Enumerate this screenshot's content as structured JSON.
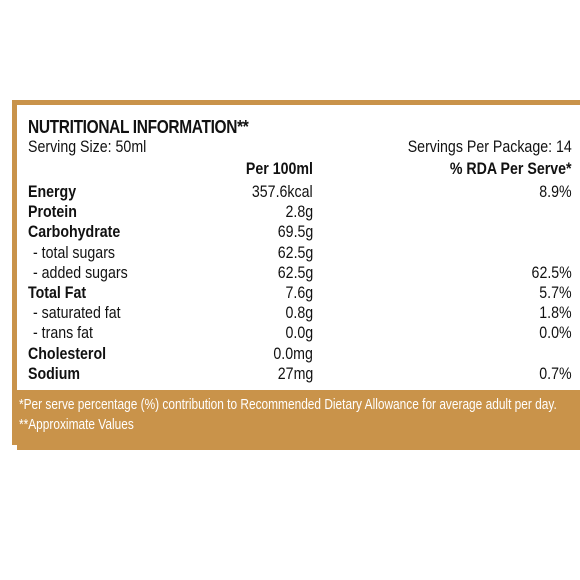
{
  "label": {
    "title": "NUTRITIONAL INFORMATION**",
    "serving_size": "Serving Size: 50ml",
    "servings_per_package": "Servings Per Package: 14",
    "col_per_100ml": "Per 100ml",
    "col_rda": "% RDA Per Serve*",
    "rows": [
      {
        "name": "Energy",
        "per100": "357.6kcal",
        "rda": "8.9%",
        "style": "bold"
      },
      {
        "name": "Protein",
        "per100": "2.8g",
        "rda": "",
        "style": "bold"
      },
      {
        "name": "Carbohydrate",
        "per100": "69.5g",
        "rda": "",
        "style": "bold"
      },
      {
        "name": "- total sugars",
        "per100": "62.5g",
        "rda": "",
        "style": "sub"
      },
      {
        "name": "- added sugars",
        "per100": "62.5g",
        "rda": "62.5%",
        "style": "sub"
      },
      {
        "name": "Total Fat",
        "per100": "7.6g",
        "rda": "5.7%",
        "style": "bold"
      },
      {
        "name": "- saturated fat",
        "per100": "0.8g",
        "rda": "1.8%",
        "style": "sub"
      },
      {
        "name": "- trans fat",
        "per100": "0.0g",
        "rda": "0.0%",
        "style": "sub"
      },
      {
        "name": "Cholesterol",
        "per100": "0.0mg",
        "rda": "",
        "style": "bold"
      },
      {
        "name": "Sodium",
        "per100": "27mg",
        "rda": "0.7%",
        "style": "bold"
      }
    ],
    "footnote_rda": "*Per serve percentage (%) contribution to Recommended  Dietary Allowance for average adult per day.",
    "footnote_approx": "**Approximate Values"
  },
  "colors": {
    "border_accent": "#c9934a",
    "text": "#111111",
    "footer_text": "#ffffff"
  }
}
